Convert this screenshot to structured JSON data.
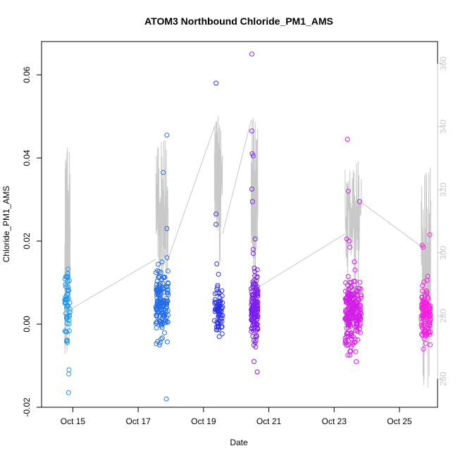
{
  "chart_data": {
    "type": "scatter",
    "title": "ATOM3 Northbound Chloride_PM1_AMS",
    "xlabel": "Date",
    "ylabel": "Chloride_PM1_AMS",
    "x_ticks": [
      "Oct 15",
      "Oct 17",
      "Oct 19",
      "Oct 21",
      "Oct 23",
      "Oct 25"
    ],
    "y_ticks": [
      "-0.02",
      "0.00",
      "0.02",
      "0.04",
      "0.06"
    ],
    "y2_ticks": [
      "260",
      "280",
      "300",
      "320",
      "340",
      "360"
    ],
    "ylim": [
      -0.02,
      0.068
    ],
    "y2lim": [
      251,
      367
    ],
    "xlim": [
      "2016-10-14 01:00",
      "2016-10-26 04:00"
    ],
    "grid": false,
    "secondary_series": {
      "color": "#c8c8c8",
      "description_y2": "gray line on right axis",
      "segments": [
        {
          "start": "2016-10-14 18:00",
          "end": "2016-10-14 22:00",
          "min": 268,
          "max": 335
        },
        {
          "start": "2016-10-17 13:00",
          "end": "2016-10-17 22:00",
          "min": 280,
          "max": 336
        },
        {
          "start": "2016-10-19 08:00",
          "end": "2016-10-19 14:00",
          "min": 295,
          "max": 345
        },
        {
          "start": "2016-10-20 11:00",
          "end": "2016-10-20 16:00",
          "min": 285,
          "max": 343
        },
        {
          "start": "2016-10-23 08:00",
          "end": "2016-10-23 20:00",
          "min": 285,
          "max": 330
        },
        {
          "start": "2016-10-25 16:00",
          "end": "2016-10-25 23:00",
          "min": 256,
          "max": 329
        }
      ],
      "connectors": [
        {
          "x1": "2016-10-14 22:00",
          "y1": 282,
          "x2": "2016-10-17 13:00",
          "y2": 298
        },
        {
          "x1": "2016-10-17 22:00",
          "y1": 298,
          "x2": "2016-10-19 08:00",
          "y2": 340
        },
        {
          "x1": "2016-10-19 14:00",
          "y1": 306,
          "x2": "2016-10-20 11:00",
          "y2": 342
        },
        {
          "x1": "2016-10-20 16:00",
          "y1": 289,
          "x2": "2016-10-23 08:00",
          "y2": 306
        },
        {
          "x1": "2016-10-23 20:00",
          "y1": 316,
          "x2": "2016-10-25 16:00",
          "y2": 302
        }
      ]
    },
    "series": [
      {
        "color": "#1e9bf0",
        "x_start": "2016-10-14 18:00",
        "x_end": "2016-10-14 22:00",
        "n": 55,
        "center": 0.005,
        "spread": 0.004,
        "outliers": [
          [
            -0.0165,
            0.7
          ],
          [
            -0.012,
            0.75
          ],
          [
            -0.011,
            0.8
          ],
          [
            0.0105,
            0.85
          ]
        ]
      },
      {
        "color": "#1f6bea",
        "x_start": "2016-10-17 13:00",
        "x_end": "2016-10-17 22:00",
        "n": 150,
        "center": 0.005,
        "spread": 0.004,
        "outliers": [
          [
            0.0455,
            0.9
          ],
          [
            0.0365,
            0.6
          ],
          [
            0.023,
            0.9
          ],
          [
            0.016,
            0.9
          ],
          [
            -0.018,
            0.85
          ],
          [
            -0.005,
            0.3
          ]
        ]
      },
      {
        "color": "#2b32e6",
        "x_start": "2016-10-19 08:00",
        "x_end": "2016-10-19 14:00",
        "n": 70,
        "center": 0.003,
        "spread": 0.003,
        "outliers": [
          [
            0.058,
            0.2
          ],
          [
            0.0265,
            0.2
          ],
          [
            0.024,
            0.2
          ],
          [
            0.0145,
            0.3
          ],
          [
            0.012,
            0.5
          ],
          [
            -0.003,
            0.6
          ]
        ]
      },
      {
        "color": "#7c1ef0",
        "x_start": "2016-10-20 11:00",
        "x_end": "2016-10-20 16:00",
        "n": 150,
        "center": 0.003,
        "spread": 0.004,
        "outliers": [
          [
            0.065,
            0.1
          ],
          [
            0.0465,
            0.1
          ],
          [
            0.041,
            0.15
          ],
          [
            0.0405,
            0.3
          ],
          [
            0.0325,
            0.1
          ],
          [
            0.0295,
            0.2
          ],
          [
            0.0205,
            0.6
          ],
          [
            0.018,
            0.3
          ],
          [
            0.017,
            0.3
          ],
          [
            -0.0115,
            0.9
          ],
          [
            -0.004,
            0.7
          ]
        ]
      },
      {
        "color": "#d41ee8",
        "x_start": "2016-10-23 08:00",
        "x_end": "2016-10-23 20:00",
        "n": 230,
        "center": 0.003,
        "spread": 0.004,
        "outliers": [
          [
            0.0445,
            0.15
          ],
          [
            0.032,
            0.2
          ],
          [
            0.0295,
            0.9
          ],
          [
            0.0205,
            0.1
          ],
          [
            0.02,
            0.25
          ],
          [
            0.0185,
            0.3
          ],
          [
            -0.0075,
            0.3
          ],
          [
            -0.0065,
            0.35
          ],
          [
            -0.005,
            0.2
          ]
        ]
      },
      {
        "color": "#f81ee0",
        "x_start": "2016-10-25 16:00",
        "x_end": "2016-10-25 23:00",
        "n": 110,
        "center": 0.003,
        "spread": 0.003,
        "outliers": [
          [
            0.0215,
            0.9
          ],
          [
            0.019,
            0.1
          ],
          [
            0.0185,
            0.2
          ],
          [
            -0.0025,
            0.9
          ],
          [
            -0.0035,
            0.3
          ]
        ]
      }
    ]
  }
}
